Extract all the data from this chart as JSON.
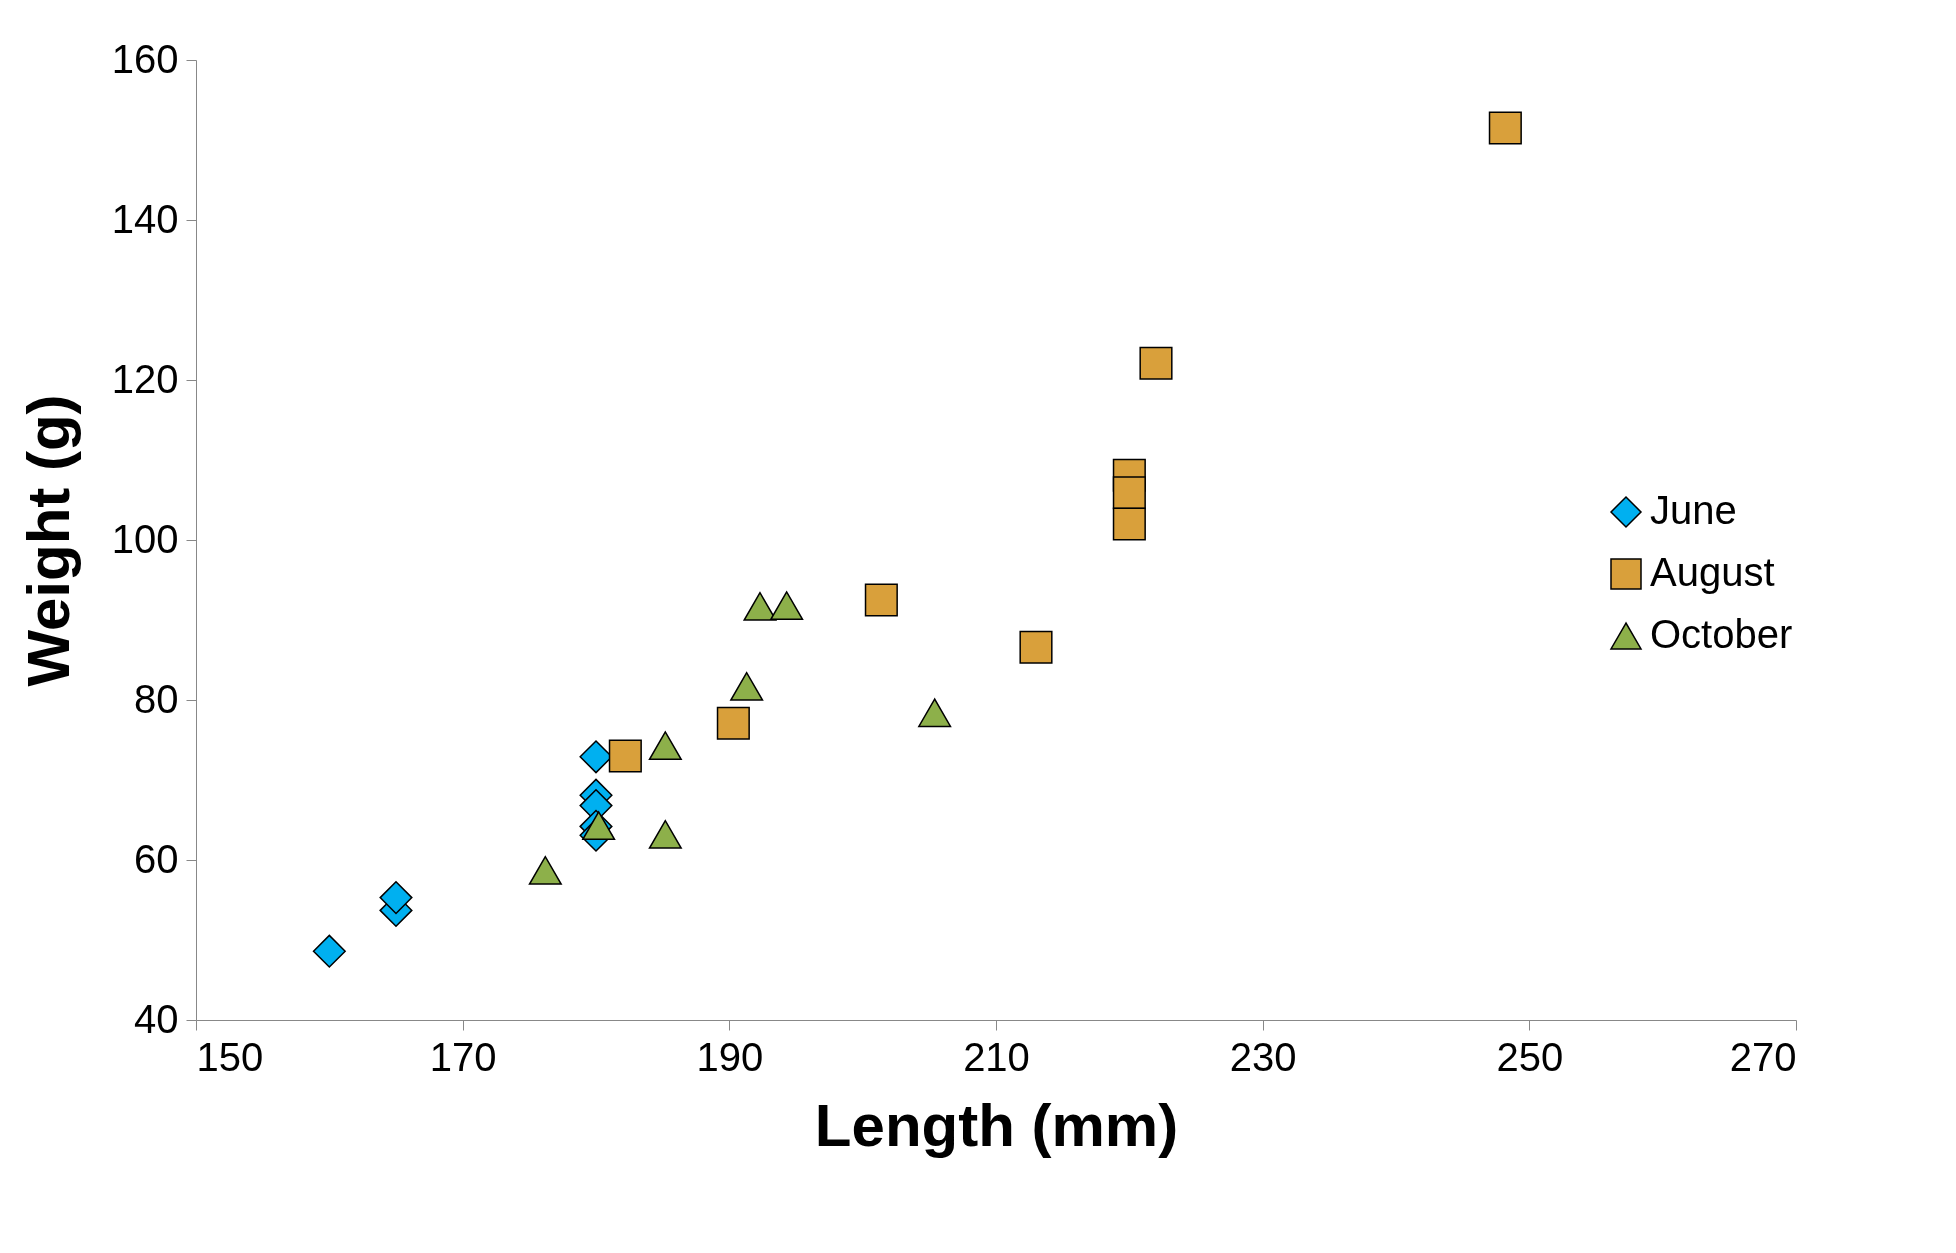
{
  "chart_data": {
    "type": "scatter",
    "xlabel": "Length (mm)",
    "ylabel": "Weight (g)",
    "xlim": [
      150,
      270
    ],
    "xticks": [
      150,
      170,
      190,
      210,
      230,
      250,
      270
    ],
    "ylim": [
      40,
      160
    ],
    "yticks": [
      40,
      60,
      80,
      100,
      120,
      140,
      160
    ],
    "grid": false,
    "legend": "right",
    "series": [
      {
        "name": "June",
        "color": "#00b0f0",
        "marker": "diamond",
        "x": [
          160,
          165,
          165,
          180,
          180,
          180,
          180,
          180
        ],
        "values": [
          48.6,
          53.7,
          55.3,
          72.9,
          68.1,
          66.8,
          64.2,
          63.1
        ]
      },
      {
        "name": "August",
        "color": "#d9a03b",
        "marker": "square",
        "x": [
          182.2,
          190.3,
          201.4,
          213,
          220,
          220,
          220,
          222,
          248.2
        ],
        "values": [
          73,
          77.1,
          92.5,
          86.6,
          108.1,
          105.9,
          102,
          122.1,
          151.5
        ]
      },
      {
        "name": "October",
        "color": "#8db04a",
        "marker": "triangle",
        "x": [
          176.2,
          180.2,
          185.2,
          185.2,
          191.3,
          192.3,
          194.3,
          205.4
        ],
        "values": [
          58.7,
          64.3,
          74.3,
          63.2,
          81.7,
          91.7,
          91.8,
          78.4
        ]
      }
    ]
  }
}
